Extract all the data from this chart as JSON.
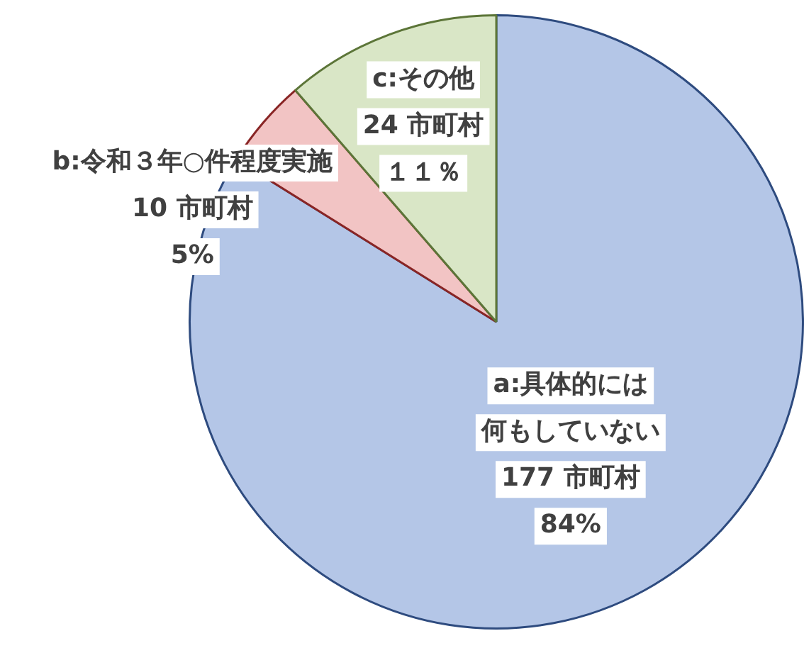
{
  "chart_data": {
    "type": "pie",
    "categories": [
      "a:具体的には何もしていない",
      "b:令和３年○件程度実施",
      "c:その他"
    ],
    "values": [
      177,
      10,
      24
    ],
    "colors": [
      "#b4c6e7",
      "#f2c4c4",
      "#d9e6c6"
    ],
    "value_labels": [
      "177 市町村 84%",
      "10 市町村 5%",
      "24 市町村１１％"
    ]
  }
}
